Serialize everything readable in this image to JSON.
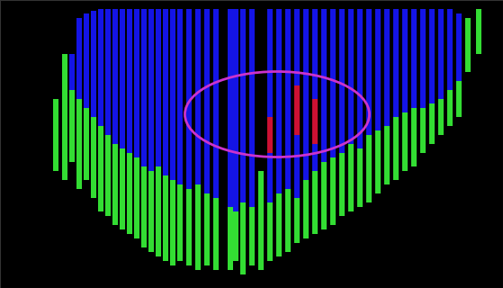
{
  "chart_data": {
    "type": "bar",
    "tick_labels": false,
    "grid": false,
    "xlim": [
      0,
      559
    ],
    "ylim": [
      320,
      0
    ],
    "xticks": [],
    "yticks": [],
    "x": [
      62,
      72,
      80,
      88,
      96,
      104,
      112,
      120,
      128,
      136,
      144,
      152,
      160,
      168,
      176,
      184,
      192,
      200,
      210,
      220,
      230,
      240,
      256,
      262,
      270,
      280,
      290,
      300,
      310,
      320,
      330,
      340,
      350,
      360,
      370,
      380,
      390,
      400,
      410,
      420,
      430,
      440,
      450,
      460,
      470,
      480,
      490,
      500,
      510,
      520,
      532
    ],
    "series": [
      {
        "color": "#1414e6",
        "from": [
          null,
          null,
          60,
          20,
          15,
          12,
          10,
          10,
          10,
          10,
          10,
          10,
          10,
          10,
          10,
          10,
          10,
          10,
          10,
          10,
          10,
          10,
          10,
          10,
          10,
          10,
          null,
          10,
          10,
          10,
          10,
          10,
          10,
          10,
          10,
          10,
          10,
          10,
          10,
          10,
          10,
          10,
          10,
          10,
          10,
          10,
          10,
          10,
          15,
          null,
          null
        ],
        "to": [
          null,
          null,
          100,
          110,
          120,
          130,
          140,
          150,
          160,
          165,
          170,
          175,
          185,
          190,
          185,
          195,
          200,
          205,
          210,
          205,
          215,
          220,
          230,
          235,
          225,
          230,
          null,
          225,
          215,
          210,
          220,
          200,
          190,
          180,
          175,
          170,
          160,
          165,
          150,
          145,
          140,
          130,
          125,
          120,
          120,
          115,
          110,
          100,
          90,
          null,
          null
        ]
      },
      {
        "color": "#33dd33",
        "from": [
          110,
          60,
          100,
          110,
          120,
          130,
          140,
          150,
          160,
          165,
          170,
          175,
          185,
          190,
          185,
          195,
          200,
          205,
          210,
          205,
          215,
          220,
          230,
          235,
          225,
          230,
          190,
          225,
          215,
          210,
          220,
          200,
          190,
          180,
          175,
          170,
          160,
          165,
          150,
          145,
          140,
          130,
          125,
          120,
          120,
          115,
          110,
          100,
          90,
          20,
          10
        ],
        "to": [
          190,
          200,
          180,
          210,
          200,
          220,
          235,
          240,
          250,
          255,
          260,
          265,
          275,
          280,
          285,
          290,
          295,
          290,
          295,
          300,
          295,
          300,
          300,
          290,
          305,
          295,
          300,
          290,
          285,
          280,
          270,
          265,
          260,
          255,
          250,
          240,
          235,
          230,
          225,
          215,
          205,
          200,
          190,
          185,
          170,
          160,
          150,
          140,
          130,
          80,
          60
        ]
      },
      {
        "color": "#cc1133",
        "from": [
          null,
          null,
          null,
          null,
          null,
          null,
          null,
          null,
          null,
          null,
          null,
          null,
          null,
          null,
          null,
          null,
          null,
          null,
          null,
          null,
          null,
          null,
          null,
          null,
          null,
          null,
          null,
          130,
          null,
          null,
          95,
          null,
          110,
          null,
          null,
          null,
          null,
          null,
          null,
          null,
          null,
          null,
          null,
          null,
          null,
          null,
          null,
          null,
          null,
          null,
          null
        ],
        "to": [
          null,
          null,
          null,
          null,
          null,
          null,
          null,
          null,
          null,
          null,
          null,
          null,
          null,
          null,
          null,
          null,
          null,
          null,
          null,
          null,
          null,
          null,
          null,
          null,
          null,
          null,
          null,
          170,
          null,
          null,
          150,
          null,
          160,
          null,
          null,
          null,
          null,
          null,
          null,
          null,
          null,
          null,
          null,
          null,
          null,
          null,
          null,
          null,
          null,
          null,
          null
        ]
      }
    ]
  }
}
